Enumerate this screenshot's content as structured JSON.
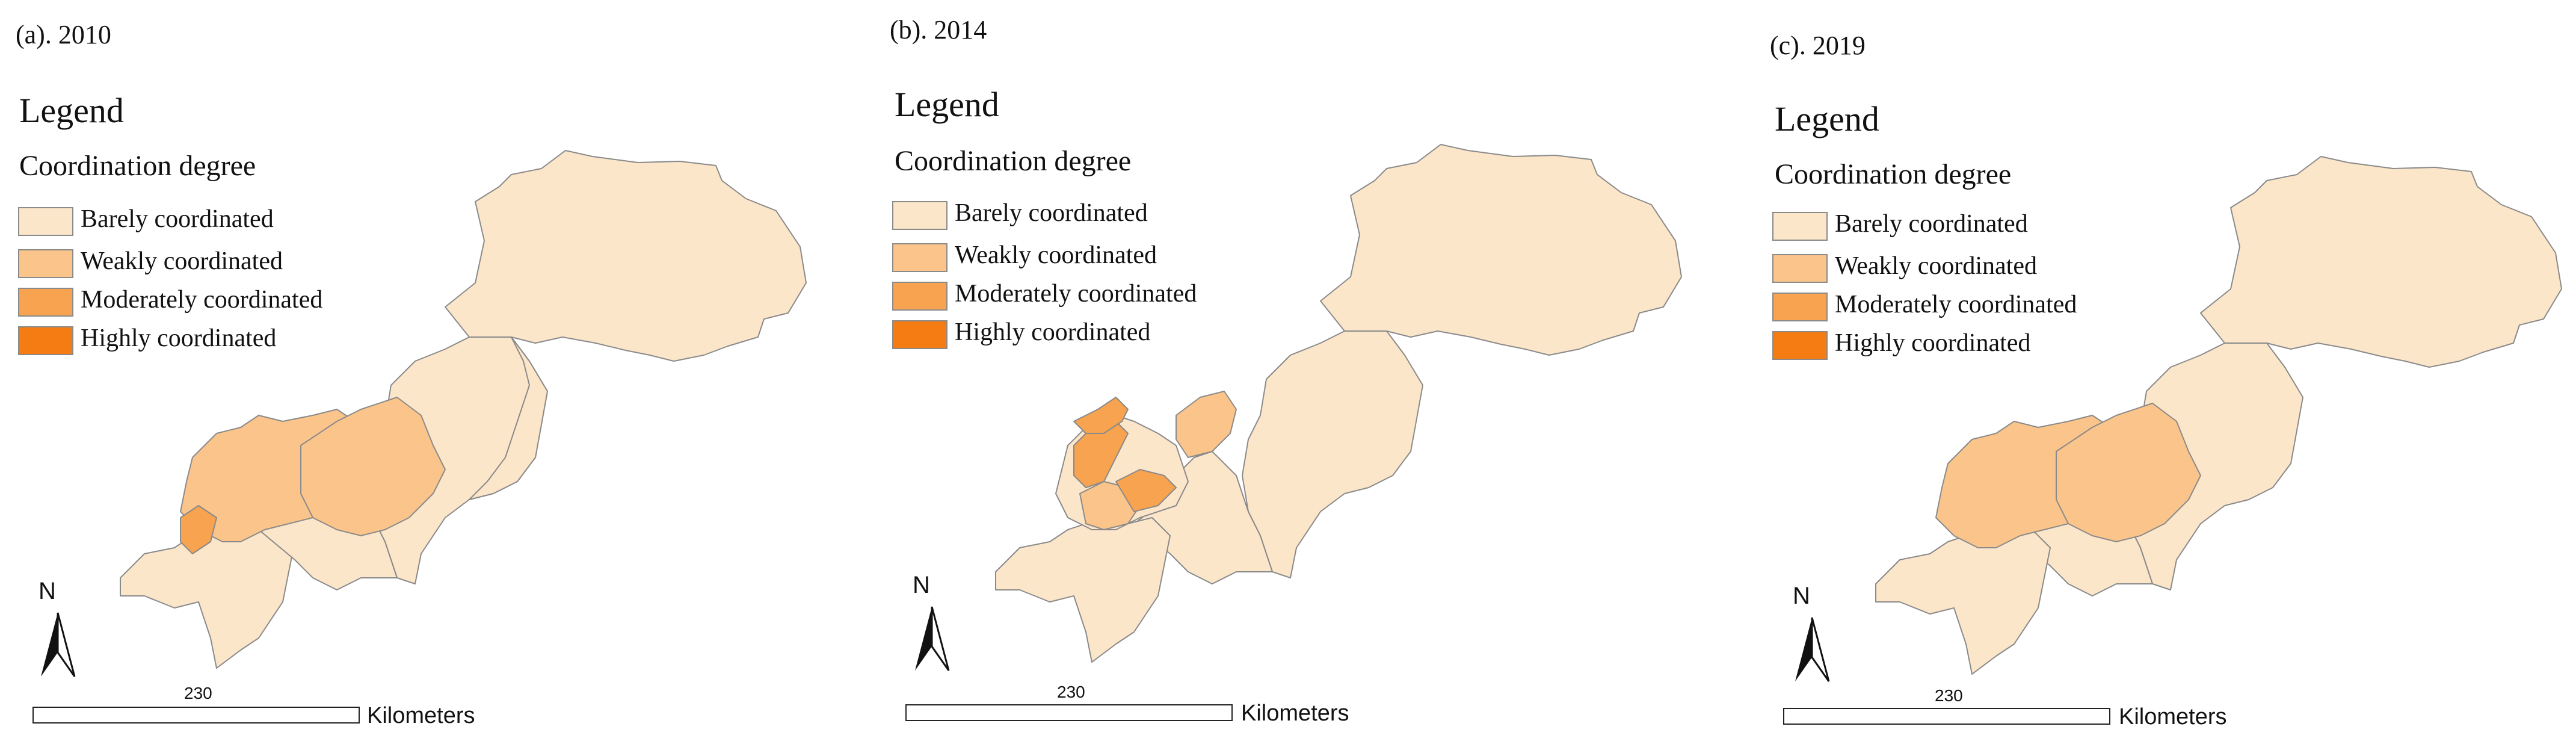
{
  "colors": {
    "barely": "#FCE6CA",
    "weakly": "#FAC48B",
    "moderately": "#F7A34F",
    "highly": "#F57C12",
    "border": "#8a8a8a"
  },
  "legend": {
    "title": "Legend",
    "subtitle": "Coordination degree",
    "items": [
      {
        "label": "Barely coordinated",
        "color": "#FCE6CA"
      },
      {
        "label": "Weakly coordinated",
        "color": "#FAC48B"
      },
      {
        "label": "Moderately coordinated",
        "color": "#F7A34F"
      },
      {
        "label": "Highly coordinated",
        "color": "#F57C12"
      }
    ]
  },
  "north_label": "N",
  "scale": {
    "value": "230",
    "unit": "Kilometers"
  },
  "panels": [
    {
      "title": "(a). 2010"
    },
    {
      "title": "(b). 2014"
    },
    {
      "title": "(c). 2019"
    }
  ]
}
